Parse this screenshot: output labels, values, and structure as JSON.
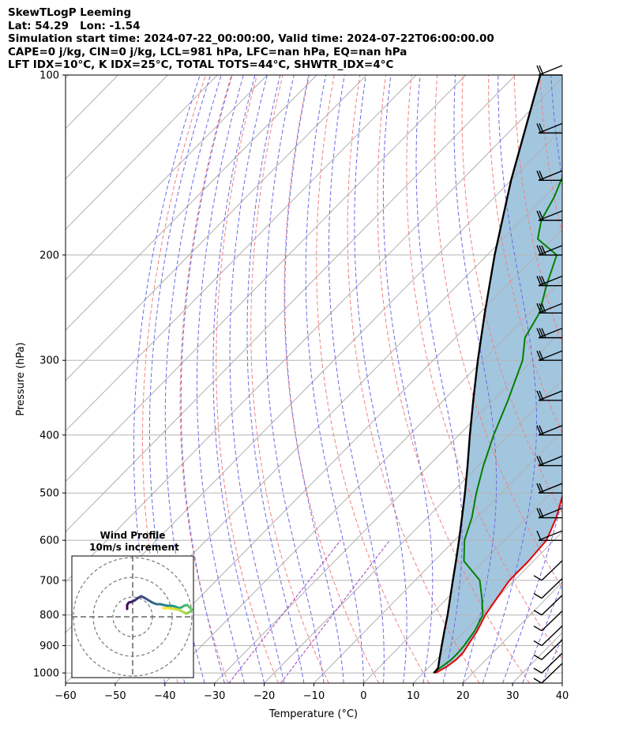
{
  "header": {
    "lines": [
      "SkewTLogP Leeming",
      "Lat: 54.29   Lon: -1.54",
      "Simulation start time: 2024-07-22_00:00:00, Valid time: 2024-07-22T06:00:00.00",
      "CAPE=0 j/kg, CIN=0 j/kg, LCL=981 hPa, LFC=nan hPa, EQ=nan hPa",
      "LFT IDX=10°C, K IDX=25°C, TOTAL TOTS=44°C, SHWTR_IDX=4°C"
    ]
  },
  "chart_data": {
    "type": "line",
    "subtype": "skew-t log-p",
    "xlabel": "Temperature (°C)",
    "ylabel": "Pressure (hPa)",
    "xlim": [
      -60,
      40
    ],
    "ylim": [
      1040,
      100
    ],
    "yscale": "log",
    "x_ticks": [
      "−60",
      "−50",
      "−40",
      "−30",
      "−20",
      "−10",
      "0",
      "10",
      "20",
      "30",
      "40"
    ],
    "x_tick_values": [
      -60,
      -50,
      -40,
      -30,
      -20,
      -10,
      0,
      10,
      20,
      30,
      40
    ],
    "y_ticks": [
      "100",
      "200",
      "300",
      "400",
      "500",
      "600",
      "700",
      "800",
      "900",
      "1000"
    ],
    "y_tick_values": [
      100,
      200,
      300,
      400,
      500,
      600,
      700,
      800,
      900,
      1000
    ],
    "grid": true,
    "colors": {
      "temperature": "#e60000",
      "dewpoint": "#008000",
      "parcel": "#000000",
      "fill": "#a3c6df",
      "isotherm": "#b0b0b0",
      "dry_adiabat": "#f08080",
      "moist_adiabat": "#6a6ae6",
      "mixing_ratio": "#a040c0"
    },
    "series": [
      {
        "key": "temperature",
        "values": [
          [
            1000,
            12.5
          ],
          [
            975,
            13.5
          ],
          [
            950,
            14
          ],
          [
            925,
            14
          ],
          [
            900,
            13.5
          ],
          [
            850,
            12.5
          ],
          [
            800,
            11
          ],
          [
            750,
            10
          ],
          [
            700,
            9
          ],
          [
            650,
            9
          ],
          [
            600,
            8.5
          ],
          [
            550,
            6
          ],
          [
            500,
            2.5
          ],
          [
            450,
            -2
          ],
          [
            400,
            -6.5
          ],
          [
            350,
            -11
          ],
          [
            300,
            -15
          ],
          [
            275,
            -17.5
          ],
          [
            250,
            -20
          ],
          [
            225,
            -24
          ],
          [
            200,
            -28
          ],
          [
            180,
            -32
          ],
          [
            160,
            -34
          ],
          [
            140,
            -38
          ],
          [
            120,
            -42
          ],
          [
            110,
            -45.5
          ],
          [
            100,
            -49
          ]
        ]
      },
      {
        "key": "dewpoint",
        "values": [
          [
            1000,
            12
          ],
          [
            975,
            12.5
          ],
          [
            950,
            13
          ],
          [
            925,
            13
          ],
          [
            900,
            12.8
          ],
          [
            850,
            12
          ],
          [
            800,
            10.5
          ],
          [
            750,
            7
          ],
          [
            700,
            3
          ],
          [
            650,
            -4
          ],
          [
            600,
            -8
          ],
          [
            550,
            -11
          ],
          [
            500,
            -15
          ],
          [
            450,
            -19
          ],
          [
            400,
            -23
          ],
          [
            350,
            -27
          ],
          [
            300,
            -32
          ],
          [
            275,
            -36
          ],
          [
            250,
            -38
          ],
          [
            225,
            -42
          ],
          [
            200,
            -46
          ],
          [
            188,
            -53
          ],
          [
            175,
            -56
          ],
          [
            160,
            -58
          ],
          [
            140,
            -62
          ],
          [
            120,
            -67
          ],
          [
            100,
            -72
          ]
        ]
      },
      {
        "key": "parcel",
        "values": [
          [
            1000,
            12.2
          ],
          [
            981,
            12.0
          ],
          [
            950,
            10.6
          ],
          [
            900,
            8.3
          ],
          [
            850,
            5.9
          ],
          [
            800,
            3.4
          ],
          [
            750,
            0.6
          ],
          [
            700,
            -2.4
          ],
          [
            650,
            -5.6
          ],
          [
            600,
            -9.1
          ],
          [
            550,
            -13.0
          ],
          [
            500,
            -17.3
          ],
          [
            450,
            -22.2
          ],
          [
            400,
            -27.8
          ],
          [
            350,
            -34.0
          ],
          [
            300,
            -41.0
          ],
          [
            250,
            -49.0
          ],
          [
            200,
            -58.5
          ],
          [
            150,
            -70.0
          ],
          [
            100,
            -85.0
          ]
        ]
      }
    ],
    "wind_barbs_pressure_levels": [
      100,
      125,
      150,
      175,
      200,
      225,
      250,
      275,
      300,
      350,
      400,
      450,
      500,
      550,
      600,
      700,
      750,
      800,
      850,
      900,
      950,
      1000,
      1040
    ],
    "inset": {
      "title_lines": [
        "Wind Profile",
        "10m/s increment"
      ]
    }
  }
}
